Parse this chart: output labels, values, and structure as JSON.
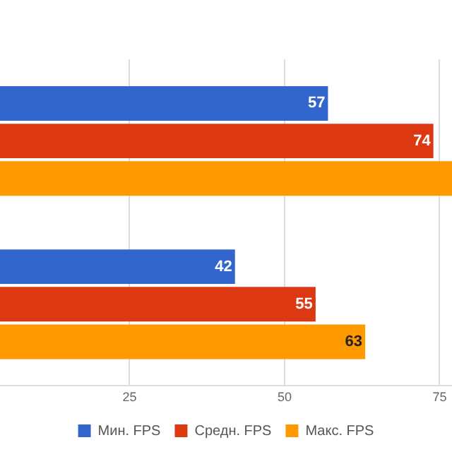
{
  "chart_data": {
    "type": "bar",
    "orientation": "horizontal",
    "categories": [
      null,
      null
    ],
    "series": [
      {
        "name": "Мин. FPS",
        "color": "#3366cc",
        "values": [
          57,
          42
        ],
        "value_labels": [
          "57",
          "42"
        ]
      },
      {
        "name": "Средн. FPS",
        "color": "#dc3912",
        "values": [
          74,
          55
        ],
        "value_labels": [
          "74",
          "55"
        ]
      },
      {
        "name": "Макс. FPS",
        "color": "#ff9900",
        "values": [
          77,
          63
        ],
        "value_labels": [
          null,
          "63"
        ]
      }
    ],
    "xlim": [
      4.1,
      77
    ],
    "xticks": [
      25,
      50,
      75
    ],
    "grid": "x",
    "legend": "bottom"
  }
}
